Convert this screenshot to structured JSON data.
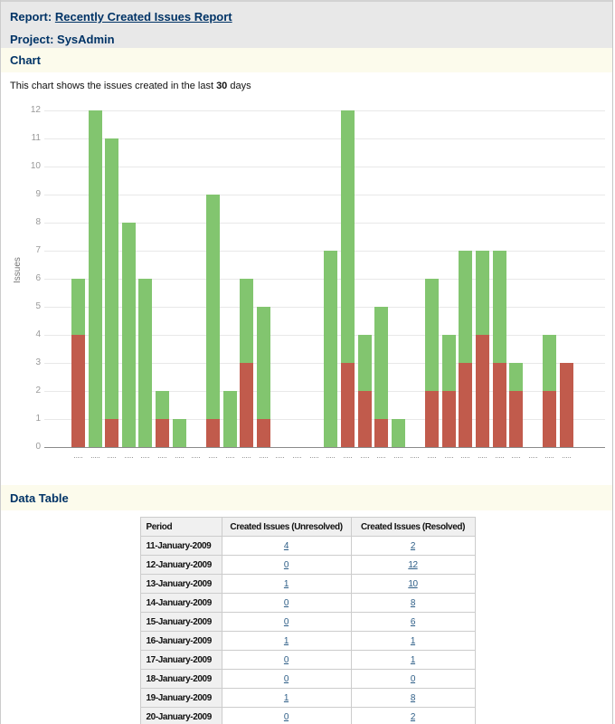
{
  "header": {
    "report_label": "Report:",
    "report_link": "Recently Created Issues Report",
    "project_label": "Project:",
    "project_name": "SysAdmin"
  },
  "chart_section": {
    "title": "Chart",
    "description_prefix": "This chart shows the issues created in the last ",
    "days": "30",
    "description_suffix": " days"
  },
  "chart_data": {
    "type": "bar",
    "stacked": true,
    "title": "",
    "ylabel": "Issues",
    "ylim": [
      0,
      12
    ],
    "yticks": [
      0,
      1,
      2,
      3,
      4,
      5,
      6,
      7,
      8,
      9,
      10,
      11,
      12
    ],
    "num_slots": 30,
    "x_tick_labels_note": "30 daily tick labels, rendered too small to be legible",
    "series": [
      {
        "name": "Created Issues (Unresolved)",
        "color": "#c15b4c",
        "values": [
          4,
          0,
          1,
          0,
          0,
          1,
          0,
          0,
          1,
          0,
          3,
          1,
          0,
          0,
          0,
          0,
          3,
          2,
          1,
          0,
          0,
          2,
          2,
          3,
          4,
          3,
          2,
          0,
          2,
          3
        ]
      },
      {
        "name": "Created Issues (Resolved)",
        "color": "#82c56f",
        "values": [
          2,
          12,
          10,
          8,
          6,
          1,
          1,
          0,
          8,
          2,
          3,
          4,
          0,
          0,
          0,
          7,
          9,
          2,
          4,
          1,
          0,
          4,
          2,
          4,
          3,
          4,
          1,
          0,
          2,
          0
        ]
      }
    ],
    "grid": true,
    "legend": false
  },
  "table_section": {
    "title": "Data Table",
    "columns": [
      "Period",
      "Created Issues (Unresolved)",
      "Created Issues (Resolved)"
    ],
    "rows": [
      {
        "period": "11-January-2009",
        "unresolved": "4",
        "resolved": "2"
      },
      {
        "period": "12-January-2009",
        "unresolved": "0",
        "resolved": "12"
      },
      {
        "period": "13-January-2009",
        "unresolved": "1",
        "resolved": "10"
      },
      {
        "period": "14-January-2009",
        "unresolved": "0",
        "resolved": "8"
      },
      {
        "period": "15-January-2009",
        "unresolved": "0",
        "resolved": "6"
      },
      {
        "period": "16-January-2009",
        "unresolved": "1",
        "resolved": "1"
      },
      {
        "period": "17-January-2009",
        "unresolved": "0",
        "resolved": "1"
      },
      {
        "period": "18-January-2009",
        "unresolved": "0",
        "resolved": "0"
      },
      {
        "period": "19-January-2009",
        "unresolved": "1",
        "resolved": "8"
      },
      {
        "period": "20-January-2009",
        "unresolved": "0",
        "resolved": "2"
      }
    ]
  }
}
